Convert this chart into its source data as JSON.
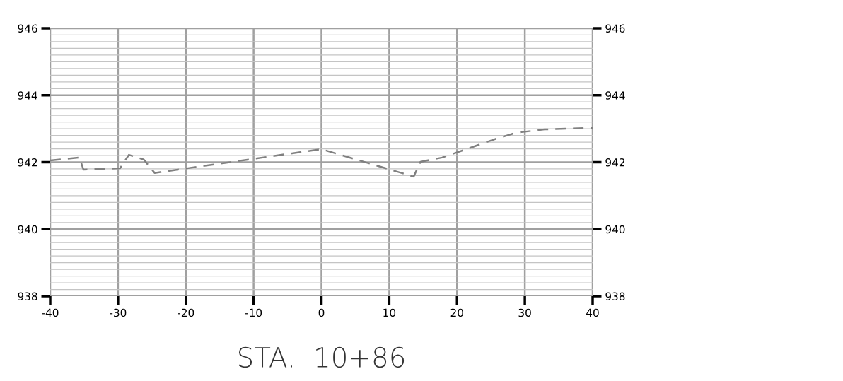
{
  "chart_data": {
    "type": "line",
    "xlabel": "STA.  10+86",
    "x": [
      -40,
      -35.7,
      -35.1,
      -29.7,
      -28.4,
      -26.2,
      -24.6,
      0,
      13.6,
      14.6,
      17.8,
      21.4,
      25.6,
      28.7,
      32.9,
      40
    ],
    "series": [
      {
        "color": "#808080",
        "values": [
          942.05,
          942.14,
          941.78,
          941.82,
          942.22,
          942.08,
          941.68,
          942.39,
          941.57,
          942.01,
          942.14,
          942.39,
          942.69,
          942.88,
          942.98,
          943.03
        ]
      }
    ],
    "xlim": [
      -40,
      40
    ],
    "xticks": [
      -40,
      -30,
      -20,
      -10,
      0,
      10,
      20,
      30,
      40
    ],
    "ylim": [
      938,
      946
    ],
    "yticks": [
      938,
      940,
      942,
      944,
      946
    ],
    "y2lim": [
      938,
      946
    ],
    "y2ticks": [
      938,
      940,
      942,
      944,
      946
    ],
    "grid": true,
    "line_style": "dashed",
    "marker": "none"
  }
}
